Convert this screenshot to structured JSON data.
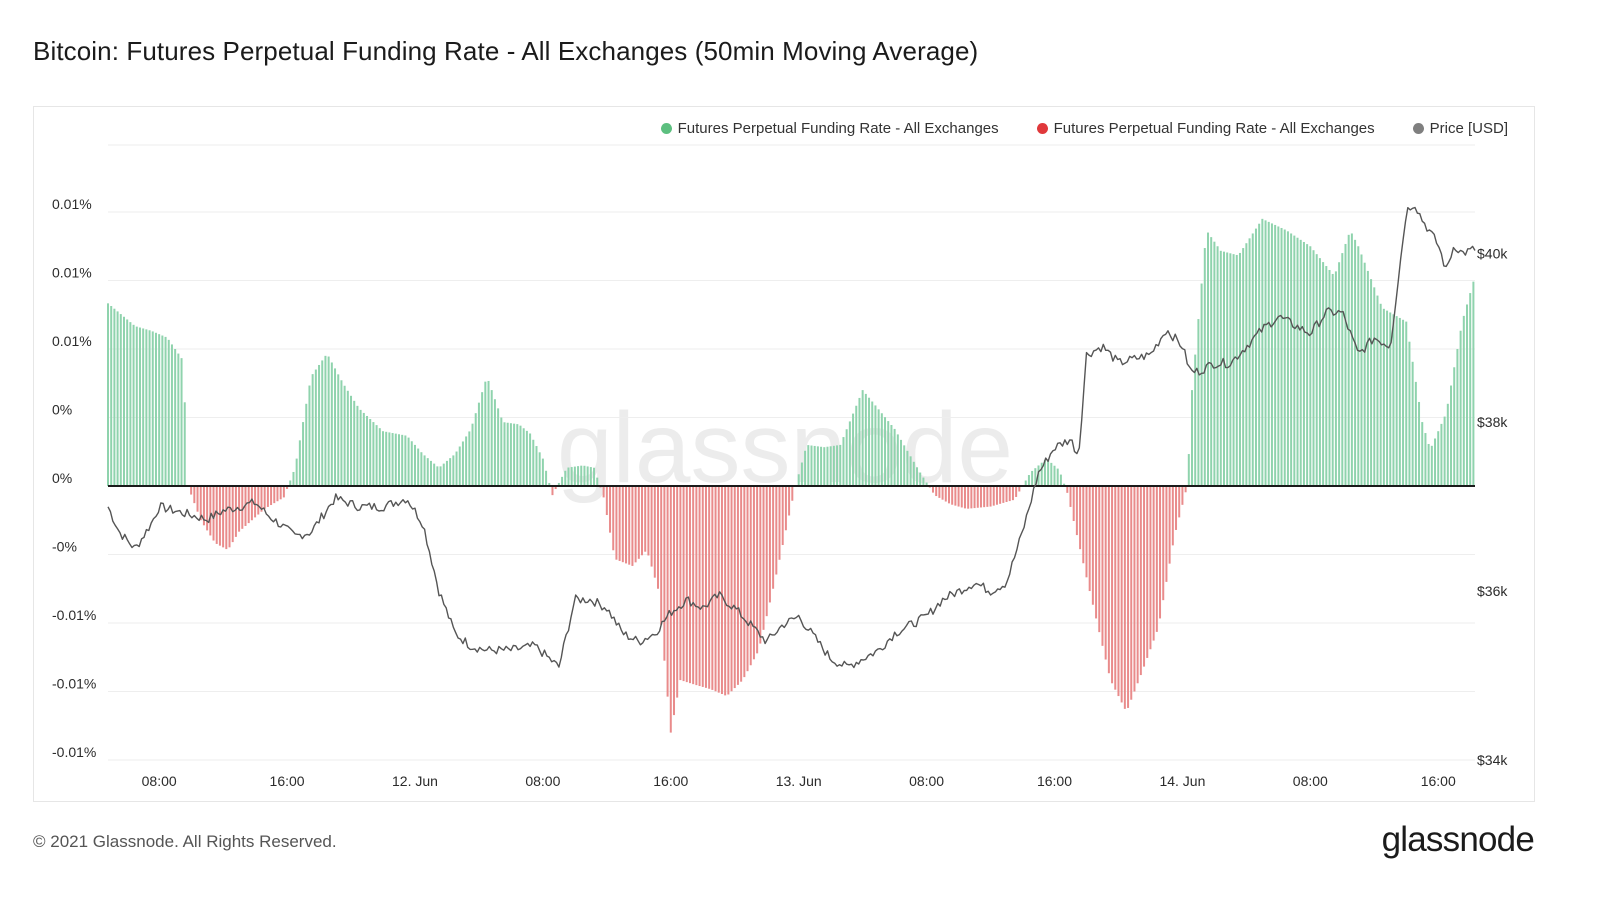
{
  "page": {
    "title": "Bitcoin: Futures Perpetual Funding Rate - All Exchanges (50min Moving Average)",
    "copyright": "© 2021 Glassnode. All Rights Reserved.",
    "logo_text": "glassnode",
    "watermark": "glassnode"
  },
  "legend": [
    {
      "label": "Futures Perpetual Funding Rate - All Exchanges",
      "color": "#5cbf7f"
    },
    {
      "label": "Futures Perpetual Funding Rate - All Exchanges",
      "color": "#e0383b"
    },
    {
      "label": "Price [USD]",
      "color": "#7f7f7f"
    }
  ],
  "chart_data": {
    "type": "bar",
    "title": "Bitcoin: Futures Perpetual Funding Rate - All Exchanges (50min Moving Average)",
    "grid": true,
    "legend_position": "top-right",
    "x_tick_labels": [
      "08:00",
      "16:00",
      "12. Jun",
      "08:00",
      "16:00",
      "13. Jun",
      "08:00",
      "16:00",
      "14. Jun",
      "08:00",
      "16:00"
    ],
    "x_tick_hours": [
      8,
      16,
      24,
      32,
      40,
      48,
      56,
      64,
      72,
      80,
      88
    ],
    "x_range_hours": [
      4.8,
      90.3
    ],
    "left_axis": {
      "tick_labels": [
        "0.01%",
        "0.01%",
        "0.01%",
        "0%",
        "0%",
        "-0%",
        "-0.01%",
        "-0.01%",
        "-0.01%"
      ],
      "tick_values": [
        0.012,
        0.009,
        0.006,
        0.003,
        0.0,
        -0.003,
        -0.006,
        -0.009,
        -0.012
      ],
      "range": [
        -0.012,
        0.012
      ],
      "unit": "%"
    },
    "right_axis": {
      "tick_labels": [
        "$40k",
        "$38k",
        "$36k",
        "$34k"
      ],
      "tick_values": [
        40000,
        38000,
        36000,
        34000
      ],
      "range": [
        34000,
        40300
      ]
    },
    "funding_rate_keypoints": {
      "x_hours": [
        4.8,
        6.5,
        7.5,
        8.5,
        9.5,
        9.8,
        10.6,
        11.5,
        12.3,
        13.0,
        14.6,
        15.8,
        16.5,
        17.5,
        18.5,
        19.5,
        20.5,
        22.0,
        23.5,
        24.5,
        25.5,
        26.5,
        27.5,
        28.5,
        29.5,
        30.5,
        31.2,
        32.0,
        32.6,
        33.5,
        34.5,
        35.2,
        35.8,
        36.5,
        37.6,
        38.5,
        39.2,
        40.0,
        40.6,
        41.5,
        42.5,
        43.5,
        44.5,
        45.5,
        46.5,
        47.8,
        48.5,
        49.6,
        50.6,
        52.0,
        52.6,
        54.0,
        55.5,
        56.5,
        57.5,
        58.5,
        60.0,
        61.5,
        62.5,
        63.5,
        64.3,
        64.8,
        66.0,
        67.5,
        68.5,
        69.5,
        70.5,
        71.5,
        72.3,
        72.6,
        73.5,
        74.4,
        75.5,
        77.0,
        78.5,
        80.0,
        81.5,
        82.5,
        83.0,
        84.5,
        86.0,
        87.0,
        87.5,
        88.5,
        89.5,
        90.3
      ],
      "values": [
        0.008,
        0.007,
        0.0068,
        0.0065,
        0.0055,
        0.0,
        -0.0015,
        -0.0025,
        -0.0028,
        -0.002,
        -0.001,
        -0.0005,
        0.0008,
        0.0048,
        0.0058,
        0.0045,
        0.0034,
        0.0024,
        0.0022,
        0.0014,
        0.0008,
        0.0014,
        0.0025,
        0.0048,
        0.0028,
        0.0027,
        0.0023,
        0.0012,
        -0.0004,
        0.0008,
        0.0009,
        0.0008,
        -0.0005,
        -0.0032,
        -0.0035,
        -0.0028,
        -0.0045,
        -0.0108,
        -0.0085,
        -0.0087,
        -0.0089,
        -0.0092,
        -0.0085,
        -0.0072,
        -0.0042,
        0.0,
        0.0018,
        0.0017,
        0.0018,
        0.0042,
        0.0037,
        0.0025,
        0.0007,
        -0.0004,
        -0.0008,
        -0.001,
        -0.0009,
        -0.0006,
        0.0006,
        0.0012,
        0.0007,
        -0.0003,
        -0.004,
        -0.0085,
        -0.0099,
        -0.0081,
        -0.0062,
        -0.0022,
        0.0,
        0.0042,
        0.0112,
        0.0103,
        0.0101,
        0.0117,
        0.0112,
        0.0105,
        0.0092,
        0.0112,
        0.0105,
        0.0078,
        0.0072,
        0.0028,
        0.0016,
        0.0032,
        0.0072,
        0.0092
      ]
    },
    "price_keypoints": {
      "x_hours": [
        4.8,
        5.5,
        6.5,
        7.5,
        8.0,
        9.0,
        10.0,
        11.0,
        12.0,
        13.0,
        14.0,
        14.8,
        15.5,
        16.5,
        17.5,
        19.0,
        20.5,
        22.0,
        23.5,
        24.5,
        25.5,
        26.5,
        27.5,
        28.5,
        30.0,
        31.5,
        33.0,
        34.0,
        35.0,
        36.0,
        37.0,
        38.0,
        39.0,
        40.0,
        41.0,
        42.0,
        43.0,
        44.0,
        45.0,
        46.0,
        47.0,
        48.0,
        49.0,
        50.0,
        51.0,
        52.0,
        53.0,
        54.0,
        55.0,
        56.0,
        57.0,
        58.0,
        59.0,
        60.0,
        61.0,
        62.0,
        63.0,
        64.0,
        65.0,
        65.5,
        66.0,
        67.0,
        68.0,
        69.0,
        70.0,
        71.0,
        72.0,
        72.5,
        73.0,
        74.0,
        75.0,
        76.0,
        77.0,
        78.0,
        79.0,
        80.0,
        81.0,
        82.0,
        83.0,
        84.0,
        85.0,
        86.0,
        86.5,
        87.0,
        88.0,
        88.5,
        89.0,
        89.5,
        90.3
      ],
      "values": [
        37000,
        36700,
        36500,
        36800,
        37000,
        36950,
        36900,
        36850,
        36950,
        37000,
        37050,
        36900,
        36800,
        36650,
        36700,
        37100,
        37000,
        37000,
        37100,
        36800,
        36000,
        35500,
        35350,
        35300,
        35300,
        35350,
        35100,
        35900,
        35900,
        35800,
        35500,
        35400,
        35500,
        35750,
        35900,
        35800,
        35950,
        35800,
        35600,
        35400,
        35600,
        35700,
        35450,
        35200,
        35100,
        35200,
        35300,
        35500,
        35600,
        35700,
        35900,
        36000,
        36100,
        36000,
        36100,
        36700,
        37400,
        37700,
        37800,
        37600,
        38800,
        38900,
        38700,
        38750,
        38800,
        39100,
        38900,
        38600,
        38600,
        38700,
        38700,
        38900,
        39100,
        39250,
        39150,
        39050,
        39300,
        39300,
        38800,
        39000,
        38900,
        40500,
        40600,
        40400,
        40100,
        39800,
        40100,
        40000,
        40050
      ]
    }
  }
}
